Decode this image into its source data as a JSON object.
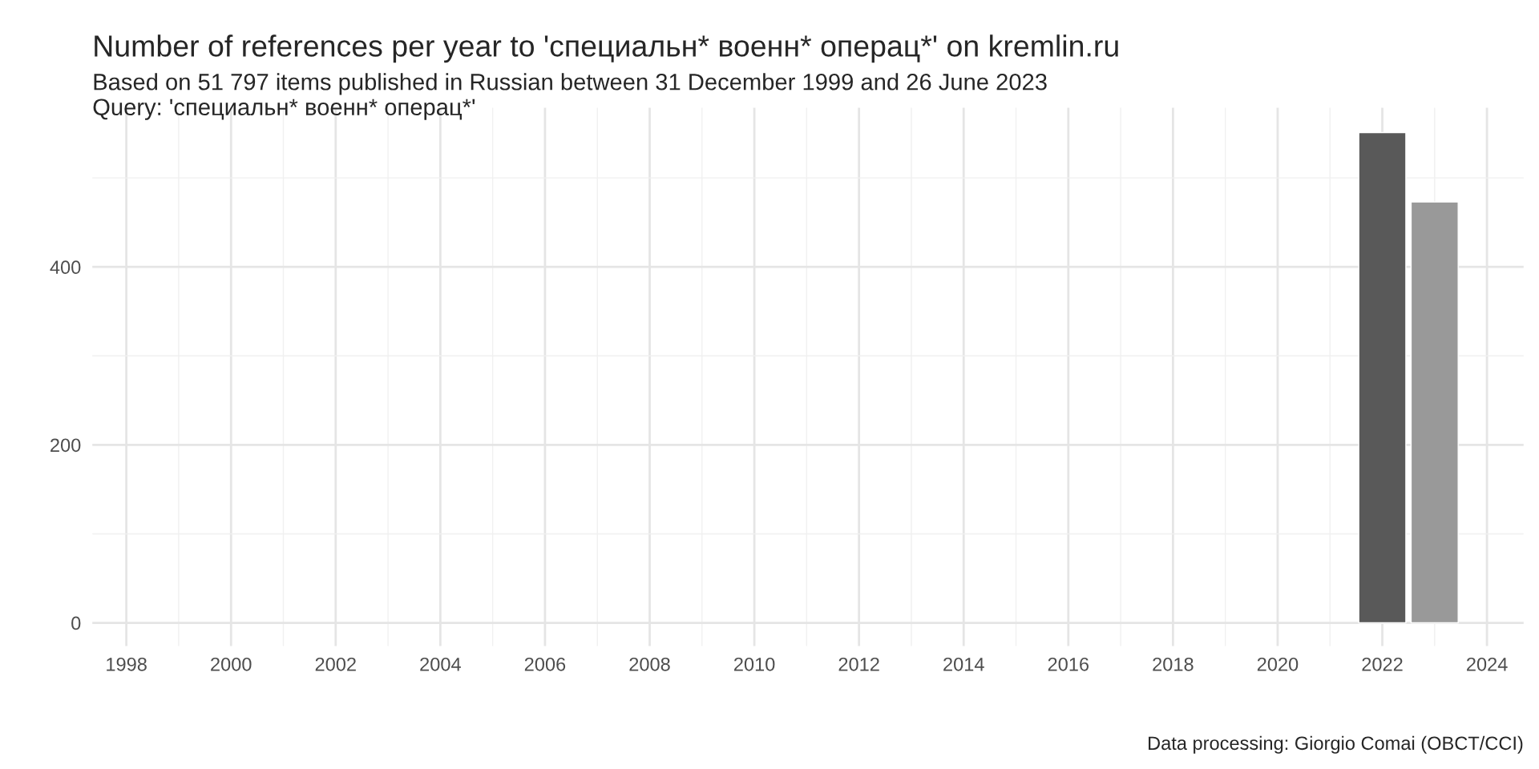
{
  "chart_data": {
    "type": "bar",
    "title": "Number of references per year to 'специальн* военн* операц*' on kremlin.ru",
    "subtitle": "Based on 51 797 items published in Russian between 31 December 1999 and 26 June 2023\nQuery: 'специальн* военн* операц*'",
    "x": [
      2022,
      2023
    ],
    "values": [
      551,
      473
    ],
    "colors": [
      "#595959",
      "#999999"
    ],
    "xlim": [
      1997.35,
      2024.7
    ],
    "xticks": [
      1998,
      2000,
      2002,
      2004,
      2006,
      2008,
      2010,
      2012,
      2014,
      2016,
      2018,
      2020,
      2022,
      2024
    ],
    "ylim": [
      -26,
      579
    ],
    "yticks": [
      0,
      200,
      400
    ],
    "grid": true,
    "annotations": [
      "Data processing: Giorgio Comai (OBCT/CCI)"
    ]
  }
}
